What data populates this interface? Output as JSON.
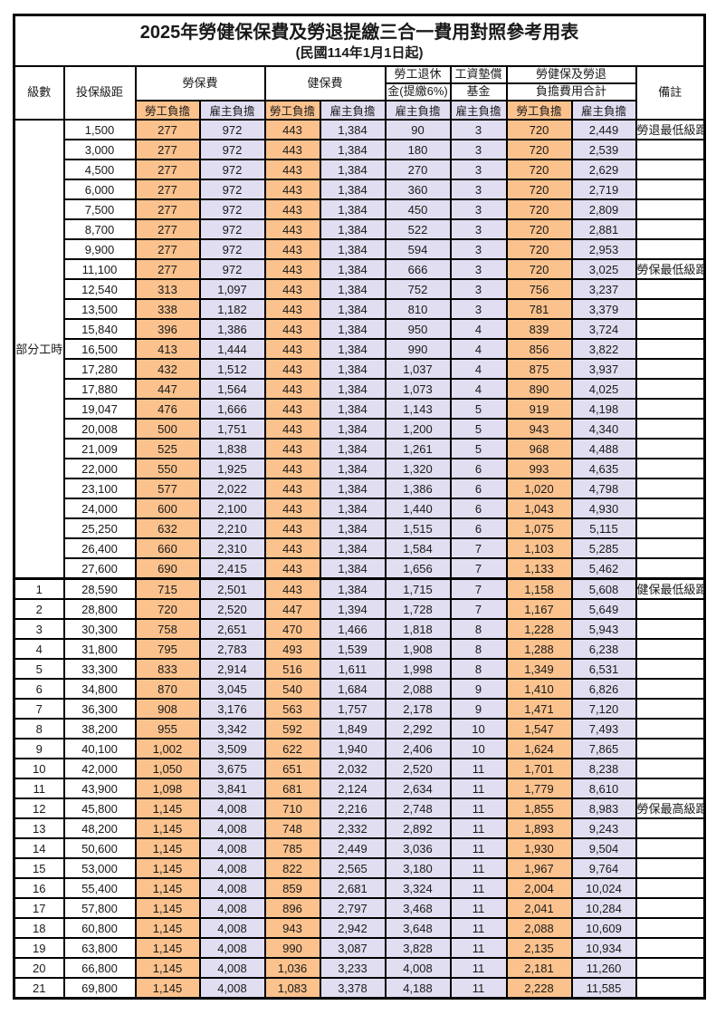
{
  "title": {
    "main": "2025年勞健保保費及勞退提繳三合一費用對照參考用表",
    "sub": "(民國114年1月1日起)"
  },
  "header": {
    "level": "級數",
    "salary": "投保級距",
    "labor_group": "勞保費",
    "health_group": "健保費",
    "pension_line1": "勞工退休",
    "pension_line2": "金(提繳6%)",
    "wage_line1": "工資墊償",
    "wage_line2": "基金",
    "total_line1": "勞健保及勞退",
    "total_line2": "負擔費用合計",
    "note": "備註",
    "sub_employee": "勞工負擔",
    "sub_employer": "雇主負擔"
  },
  "part_time_label": "部分工時",
  "colors": {
    "employee_bg": "#fbc28d",
    "employer_bg": "#e1def1",
    "highlight_red": "#e2554d",
    "note_red": "#ee655c"
  },
  "notes_legend": [
    "勞退最低級距",
    "勞保最低級距",
    "健保最低級距",
    "勞保最高級距"
  ],
  "columns": [
    "級數",
    "投保級距",
    "勞保費-勞工負擔",
    "勞保費-雇主負擔",
    "健保費-勞工負擔",
    "健保費-雇主負擔",
    "勞工退休金(提繳6%)-雇主負擔",
    "工資墊償基金-雇主負擔",
    "合計-勞工負擔",
    "合計-雇主負擔",
    "備註"
  ],
  "rows": [
    [
      "",
      "1,500",
      "277",
      "972",
      "443",
      "1,384",
      "90",
      "3",
      "720",
      "2,449",
      "勞退最低級距",
      "red"
    ],
    [
      "",
      "3,000",
      "277",
      "972",
      "443",
      "1,384",
      "180",
      "3",
      "720",
      "2,539",
      "",
      ""
    ],
    [
      "",
      "4,500",
      "277",
      "972",
      "443",
      "1,384",
      "270",
      "3",
      "720",
      "2,629",
      "",
      ""
    ],
    [
      "",
      "6,000",
      "277",
      "972",
      "443",
      "1,384",
      "360",
      "3",
      "720",
      "2,719",
      "",
      ""
    ],
    [
      "",
      "7,500",
      "277",
      "972",
      "443",
      "1,384",
      "450",
      "3",
      "720",
      "2,809",
      "",
      ""
    ],
    [
      "",
      "8,700",
      "277",
      "972",
      "443",
      "1,384",
      "522",
      "3",
      "720",
      "2,881",
      "",
      ""
    ],
    [
      "",
      "9,900",
      "277",
      "972",
      "443",
      "1,384",
      "594",
      "3",
      "720",
      "2,953",
      "",
      ""
    ],
    [
      "",
      "11,100",
      "277",
      "972",
      "443",
      "1,384",
      "666",
      "3",
      "720",
      "3,025",
      "勞保最低級距",
      "red"
    ],
    [
      "",
      "12,540",
      "313",
      "1,097",
      "443",
      "1,384",
      "752",
      "3",
      "756",
      "3,237",
      "",
      ""
    ],
    [
      "",
      "13,500",
      "338",
      "1,182",
      "443",
      "1,384",
      "810",
      "3",
      "781",
      "3,379",
      "",
      ""
    ],
    [
      "",
      "15,840",
      "396",
      "1,386",
      "443",
      "1,384",
      "950",
      "4",
      "839",
      "3,724",
      "",
      ""
    ],
    [
      "",
      "16,500",
      "413",
      "1,444",
      "443",
      "1,384",
      "990",
      "4",
      "856",
      "3,822",
      "",
      ""
    ],
    [
      "",
      "17,280",
      "432",
      "1,512",
      "443",
      "1,384",
      "1,037",
      "4",
      "875",
      "3,937",
      "",
      ""
    ],
    [
      "",
      "17,880",
      "447",
      "1,564",
      "443",
      "1,384",
      "1,073",
      "4",
      "890",
      "4,025",
      "",
      ""
    ],
    [
      "",
      "19,047",
      "476",
      "1,666",
      "443",
      "1,384",
      "1,143",
      "5",
      "919",
      "4,198",
      "",
      ""
    ],
    [
      "",
      "20,008",
      "500",
      "1,751",
      "443",
      "1,384",
      "1,200",
      "5",
      "943",
      "4,340",
      "",
      ""
    ],
    [
      "",
      "21,009",
      "525",
      "1,838",
      "443",
      "1,384",
      "1,261",
      "5",
      "968",
      "4,488",
      "",
      ""
    ],
    [
      "",
      "22,000",
      "550",
      "1,925",
      "443",
      "1,384",
      "1,320",
      "6",
      "993",
      "4,635",
      "",
      ""
    ],
    [
      "",
      "23,100",
      "577",
      "2,022",
      "443",
      "1,384",
      "1,386",
      "6",
      "1,020",
      "4,798",
      "",
      ""
    ],
    [
      "",
      "24,000",
      "600",
      "2,100",
      "443",
      "1,384",
      "1,440",
      "6",
      "1,043",
      "4,930",
      "",
      ""
    ],
    [
      "",
      "25,250",
      "632",
      "2,210",
      "443",
      "1,384",
      "1,515",
      "6",
      "1,075",
      "5,115",
      "",
      ""
    ],
    [
      "",
      "26,400",
      "660",
      "2,310",
      "443",
      "1,384",
      "1,584",
      "7",
      "1,103",
      "5,285",
      "",
      ""
    ],
    [
      "",
      "27,600",
      "690",
      "2,415",
      "443",
      "1,384",
      "1,656",
      "7",
      "1,133",
      "5,462",
      "",
      ""
    ],
    [
      "1",
      "28,590",
      "715",
      "2,501",
      "443",
      "1,384",
      "1,715",
      "7",
      "1,158",
      "5,608",
      "健保最低級距",
      "red big topline"
    ],
    [
      "2",
      "28,800",
      "720",
      "2,520",
      "447",
      "1,394",
      "1,728",
      "7",
      "1,167",
      "5,649",
      "",
      ""
    ],
    [
      "3",
      "30,300",
      "758",
      "2,651",
      "470",
      "1,466",
      "1,818",
      "8",
      "1,228",
      "5,943",
      "",
      ""
    ],
    [
      "4",
      "31,800",
      "795",
      "2,783",
      "493",
      "1,539",
      "1,908",
      "8",
      "1,288",
      "6,238",
      "",
      ""
    ],
    [
      "5",
      "33,300",
      "833",
      "2,914",
      "516",
      "1,611",
      "1,998",
      "8",
      "1,349",
      "6,531",
      "",
      ""
    ],
    [
      "6",
      "34,800",
      "870",
      "3,045",
      "540",
      "1,684",
      "2,088",
      "9",
      "1,410",
      "6,826",
      "",
      ""
    ],
    [
      "7",
      "36,300",
      "908",
      "3,176",
      "563",
      "1,757",
      "2,178",
      "9",
      "1,471",
      "7,120",
      "",
      ""
    ],
    [
      "8",
      "38,200",
      "955",
      "3,342",
      "592",
      "1,849",
      "2,292",
      "10",
      "1,547",
      "7,493",
      "",
      ""
    ],
    [
      "9",
      "40,100",
      "1,002",
      "3,509",
      "622",
      "1,940",
      "2,406",
      "10",
      "1,624",
      "7,865",
      "",
      ""
    ],
    [
      "10",
      "42,000",
      "1,050",
      "3,675",
      "651",
      "2,032",
      "2,520",
      "11",
      "1,701",
      "8,238",
      "",
      ""
    ],
    [
      "11",
      "43,900",
      "1,098",
      "3,841",
      "681",
      "2,124",
      "2,634",
      "11",
      "1,779",
      "8,610",
      "",
      ""
    ],
    [
      "12",
      "45,800",
      "1,145",
      "4,008",
      "710",
      "2,216",
      "2,748",
      "11",
      "1,855",
      "8,983",
      "勞保最高級距",
      "red big"
    ],
    [
      "13",
      "48,200",
      "1,145",
      "4,008",
      "748",
      "2,332",
      "2,892",
      "11",
      "1,893",
      "9,243",
      "",
      ""
    ],
    [
      "14",
      "50,600",
      "1,145",
      "4,008",
      "785",
      "2,449",
      "3,036",
      "11",
      "1,930",
      "9,504",
      "",
      ""
    ],
    [
      "15",
      "53,000",
      "1,145",
      "4,008",
      "822",
      "2,565",
      "3,180",
      "11",
      "1,967",
      "9,764",
      "",
      ""
    ],
    [
      "16",
      "55,400",
      "1,145",
      "4,008",
      "859",
      "2,681",
      "3,324",
      "11",
      "2,004",
      "10,024",
      "",
      ""
    ],
    [
      "17",
      "57,800",
      "1,145",
      "4,008",
      "896",
      "2,797",
      "3,468",
      "11",
      "2,041",
      "10,284",
      "",
      ""
    ],
    [
      "18",
      "60,800",
      "1,145",
      "4,008",
      "943",
      "2,942",
      "3,648",
      "11",
      "2,088",
      "10,609",
      "",
      ""
    ],
    [
      "19",
      "63,800",
      "1,145",
      "4,008",
      "990",
      "3,087",
      "3,828",
      "11",
      "2,135",
      "10,934",
      "",
      ""
    ],
    [
      "20",
      "66,800",
      "1,145",
      "4,008",
      "1,036",
      "3,233",
      "4,008",
      "11",
      "2,181",
      "11,260",
      "",
      ""
    ],
    [
      "21",
      "69,800",
      "1,145",
      "4,008",
      "1,083",
      "3,378",
      "4,188",
      "11",
      "2,228",
      "11,585",
      "",
      ""
    ]
  ]
}
